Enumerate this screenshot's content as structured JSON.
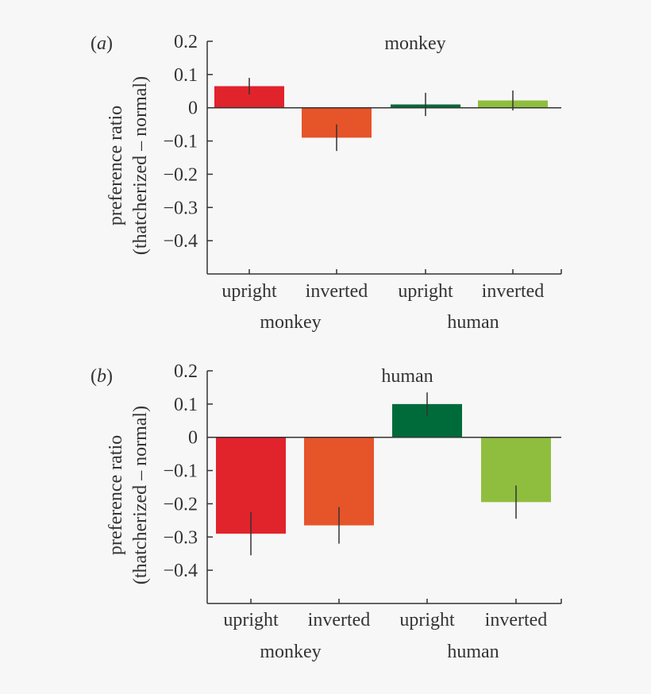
{
  "chart_data": [
    {
      "type": "bar",
      "panel_label": "(a)",
      "title": "monkey",
      "ylabel_lines": [
        "preference ratio",
        "(thatcherized – normal)"
      ],
      "ylim": [
        -0.5,
        0.2
      ],
      "yticks": [
        0.2,
        0.1,
        0,
        -0.1,
        -0.2,
        -0.3,
        -0.4
      ],
      "ytick_labels": [
        "0.2",
        "0.1",
        "0",
        "−0.1",
        "−0.2",
        "−0.3",
        "−0.4"
      ],
      "categories": [
        "upright",
        "inverted",
        "upright",
        "inverted"
      ],
      "groups": [
        "monkey",
        "human"
      ],
      "values": [
        0.065,
        -0.09,
        0.01,
        0.022
      ],
      "errors": [
        0.025,
        0.04,
        0.035,
        0.03
      ],
      "colors": [
        "#e1232c",
        "#e6542a",
        "#006b3a",
        "#8fbe3f"
      ]
    },
    {
      "type": "bar",
      "panel_label": "(b)",
      "title": "human",
      "ylabel_lines": [
        "preference ratio",
        "(thatcherized – normal)"
      ],
      "ylim": [
        -0.5,
        0.2
      ],
      "yticks": [
        0.2,
        0.1,
        0,
        -0.1,
        -0.2,
        -0.3,
        -0.4
      ],
      "ytick_labels": [
        "0.2",
        "0.1",
        "0",
        "−0.1",
        "−0.2",
        "−0.3",
        "−0.4"
      ],
      "categories": [
        "upright",
        "inverted",
        "upright",
        "inverted"
      ],
      "groups": [
        "monkey",
        "human"
      ],
      "values": [
        -0.29,
        -0.265,
        0.1,
        -0.195
      ],
      "errors": [
        0.065,
        0.055,
        0.035,
        0.05
      ],
      "colors": [
        "#e1232c",
        "#e6542a",
        "#006b3a",
        "#8fbe3f"
      ]
    }
  ]
}
